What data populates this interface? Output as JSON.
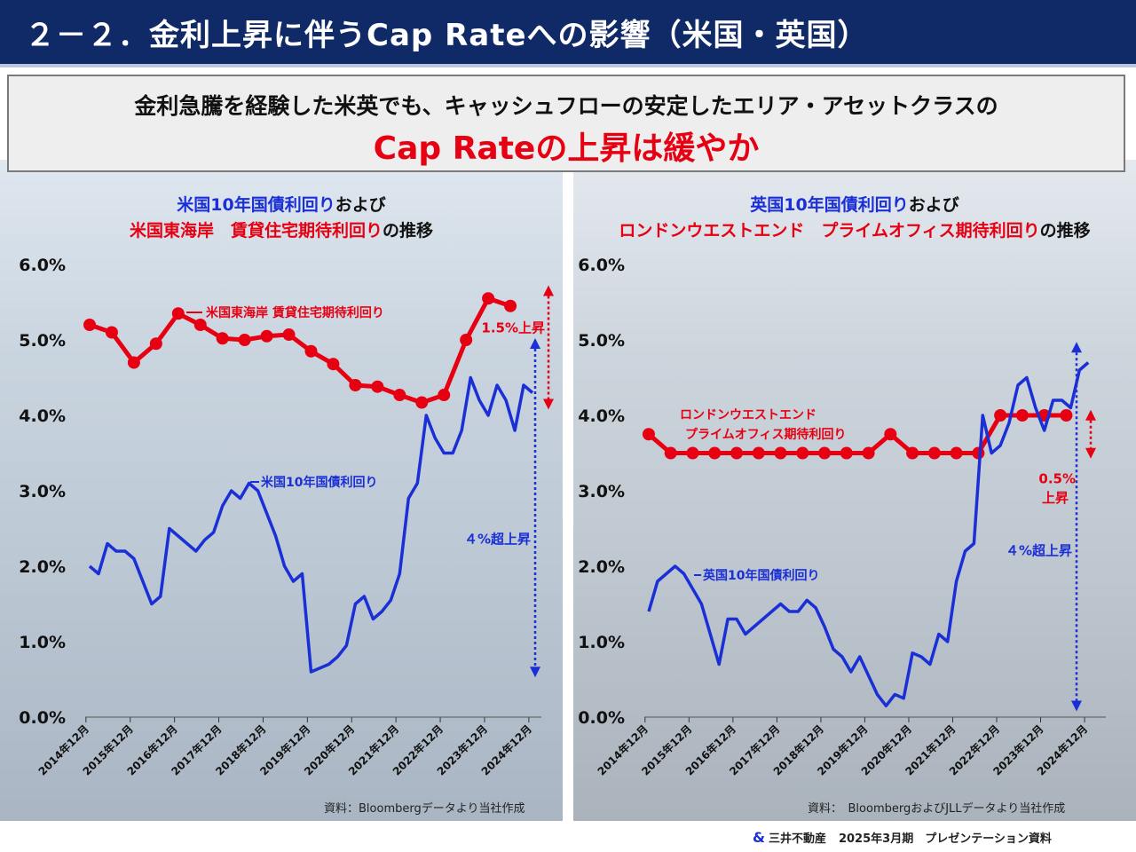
{
  "header": {
    "title": "２－２．金利上昇に伴うCap Rateへの影響（米国・英国）"
  },
  "callout": {
    "line1": "金利急騰を経験した米英でも、キャッシュフローの安定したエリア・アセットクラスの",
    "line2": "Cap Rateの上昇は緩やか"
  },
  "left_panel": {
    "title_line1_blue": "米国10年国債利回り",
    "title_line1_black": "および",
    "title_line2_red": "米国東海岸　賃貸住宅期待利回り",
    "title_line2_black": "の推移",
    "source": "資料：Bloombergデータより当社作成"
  },
  "right_panel": {
    "title_line1_blue": "英国10年国債利回り",
    "title_line1_black": "および",
    "title_line2_red": "ロンドンウエストエンド　プライムオフィス期待利回り",
    "title_line2_black": "の推移",
    "source": "資料：　BloombergおよびJLLデータより当社作成"
  },
  "footer": {
    "company": "三井不動産",
    "document": "2025年3月期　プレゼンテーション資料"
  },
  "colors": {
    "header_bg": "#0f2a66",
    "red": "#e60012",
    "blue": "#1a2fd6"
  },
  "chart_data": [
    {
      "type": "line",
      "x_ticks": [
        "2014年12月",
        "2015年12月",
        "2016年12月",
        "2017年12月",
        "2018年12月",
        "2019年12月",
        "2020年12月",
        "2021年12月",
        "2022年12月",
        "2023年12月",
        "2024年12月"
      ],
      "y_ticks": [
        "0.0%",
        "1.0%",
        "2.0%",
        "3.0%",
        "4.0%",
        "5.0%",
        "6.0%"
      ],
      "ylim": [
        0,
        6
      ],
      "xlim": [
        2014.9,
        2025.2
      ],
      "series": [
        {
          "name": "米国東海岸 賃貸住宅期待利回り",
          "color": "#e60012",
          "markers": true,
          "x": [
            2015.0,
            2015.5,
            2016.0,
            2016.5,
            2017.0,
            2017.5,
            2018.0,
            2018.5,
            2019.0,
            2019.5,
            2020.0,
            2020.5,
            2021.0,
            2021.5,
            2022.0,
            2022.5,
            2023.0,
            2023.5,
            2024.0,
            2024.5
          ],
          "y": [
            5.2,
            5.1,
            4.7,
            4.95,
            5.35,
            5.2,
            5.02,
            5.0,
            5.05,
            5.07,
            4.85,
            4.68,
            4.4,
            4.38,
            4.27,
            4.17,
            4.27,
            5.0,
            5.55,
            5.45
          ]
        },
        {
          "name": "米国10年国債利回り",
          "color": "#1a2fd6",
          "markers": false,
          "x": [
            2015.0,
            2015.2,
            2015.4,
            2015.6,
            2015.8,
            2016.0,
            2016.2,
            2016.4,
            2016.6,
            2016.8,
            2017.0,
            2017.2,
            2017.4,
            2017.6,
            2017.8,
            2018.0,
            2018.2,
            2018.4,
            2018.6,
            2018.8,
            2019.0,
            2019.2,
            2019.4,
            2019.6,
            2019.8,
            2020.0,
            2020.2,
            2020.4,
            2020.6,
            2020.8,
            2021.0,
            2021.2,
            2021.4,
            2021.6,
            2021.8,
            2022.0,
            2022.2,
            2022.4,
            2022.6,
            2022.8,
            2023.0,
            2023.2,
            2023.4,
            2023.6,
            2023.8,
            2024.0,
            2024.2,
            2024.4,
            2024.6,
            2024.8,
            2025.0
          ],
          "y": [
            2.0,
            1.9,
            2.3,
            2.2,
            2.2,
            2.1,
            1.8,
            1.5,
            1.6,
            2.5,
            2.4,
            2.3,
            2.2,
            2.35,
            2.45,
            2.8,
            3.0,
            2.9,
            3.1,
            3.0,
            2.7,
            2.4,
            2.0,
            1.8,
            1.9,
            0.6,
            0.65,
            0.7,
            0.8,
            0.95,
            1.5,
            1.6,
            1.3,
            1.4,
            1.55,
            1.9,
            2.9,
            3.1,
            4.0,
            3.7,
            3.5,
            3.5,
            3.8,
            4.5,
            4.2,
            4.0,
            4.4,
            4.2,
            3.8,
            4.4,
            4.3
          ]
        }
      ],
      "annotations": {
        "red_label": "米国東海岸 賃貸住宅期待利回り",
        "blue_label": "米国10年国債利回り",
        "red_change": "1.5%上昇",
        "blue_change": "４%超上昇"
      }
    },
    {
      "type": "line",
      "x_ticks": [
        "2014年12月",
        "2015年12月",
        "2016年12月",
        "2017年12月",
        "2018年12月",
        "2019年12月",
        "2020年12月",
        "2021年12月",
        "2022年12月",
        "2023年12月",
        "2024年12月"
      ],
      "y_ticks": [
        "0.0%",
        "1.0%",
        "2.0%",
        "3.0%",
        "4.0%",
        "5.0%",
        "6.0%"
      ],
      "ylim": [
        0,
        6
      ],
      "xlim": [
        2014.9,
        2025.4
      ],
      "series": [
        {
          "name": "ロンドンウエストエンド プライムオフィス期待利回り",
          "color": "#e60012",
          "markers": true,
          "x": [
            2015.0,
            2015.5,
            2016.0,
            2016.5,
            2017.0,
            2017.5,
            2018.0,
            2018.5,
            2019.0,
            2019.5,
            2020.0,
            2020.5,
            2021.0,
            2021.5,
            2022.0,
            2022.5,
            2023.0,
            2023.5,
            2024.0,
            2024.5
          ],
          "y": [
            3.75,
            3.5,
            3.5,
            3.5,
            3.5,
            3.5,
            3.5,
            3.5,
            3.5,
            3.5,
            3.5,
            3.75,
            3.5,
            3.5,
            3.5,
            3.5,
            4.0,
            4.0,
            4.0,
            4.0
          ]
        },
        {
          "name": "英国10年国債利回り",
          "color": "#1a2fd6",
          "markers": false,
          "x": [
            2015.0,
            2015.2,
            2015.4,
            2015.6,
            2015.8,
            2016.0,
            2016.2,
            2016.4,
            2016.6,
            2016.8,
            2017.0,
            2017.2,
            2017.4,
            2017.6,
            2017.8,
            2018.0,
            2018.2,
            2018.4,
            2018.6,
            2018.8,
            2019.0,
            2019.2,
            2019.4,
            2019.6,
            2019.8,
            2020.0,
            2020.2,
            2020.4,
            2020.6,
            2020.8,
            2021.0,
            2021.2,
            2021.4,
            2021.6,
            2021.8,
            2022.0,
            2022.2,
            2022.4,
            2022.6,
            2022.8,
            2023.0,
            2023.2,
            2023.4,
            2023.6,
            2023.8,
            2024.0,
            2024.2,
            2024.4,
            2024.6,
            2024.8,
            2025.0
          ],
          "y": [
            1.4,
            1.8,
            1.9,
            2.0,
            1.9,
            1.7,
            1.5,
            1.1,
            0.7,
            1.3,
            1.3,
            1.1,
            1.2,
            1.3,
            1.4,
            1.5,
            1.4,
            1.4,
            1.55,
            1.45,
            1.2,
            0.9,
            0.8,
            0.6,
            0.8,
            0.55,
            0.3,
            0.15,
            0.3,
            0.25,
            0.85,
            0.8,
            0.7,
            1.1,
            1.0,
            1.8,
            2.2,
            2.3,
            4.0,
            3.5,
            3.6,
            3.9,
            4.4,
            4.5,
            4.1,
            3.8,
            4.2,
            4.2,
            4.1,
            4.6,
            4.7
          ]
        }
      ],
      "annotations": {
        "red_label_line1": "ロンドンウエストエンド",
        "red_label_line2": "プライムオフィス期待利回り",
        "blue_label": "英国10年国債利回り",
        "red_change_line1": "0.5%",
        "red_change_line2": "上昇",
        "blue_change": "４%超上昇"
      }
    }
  ]
}
